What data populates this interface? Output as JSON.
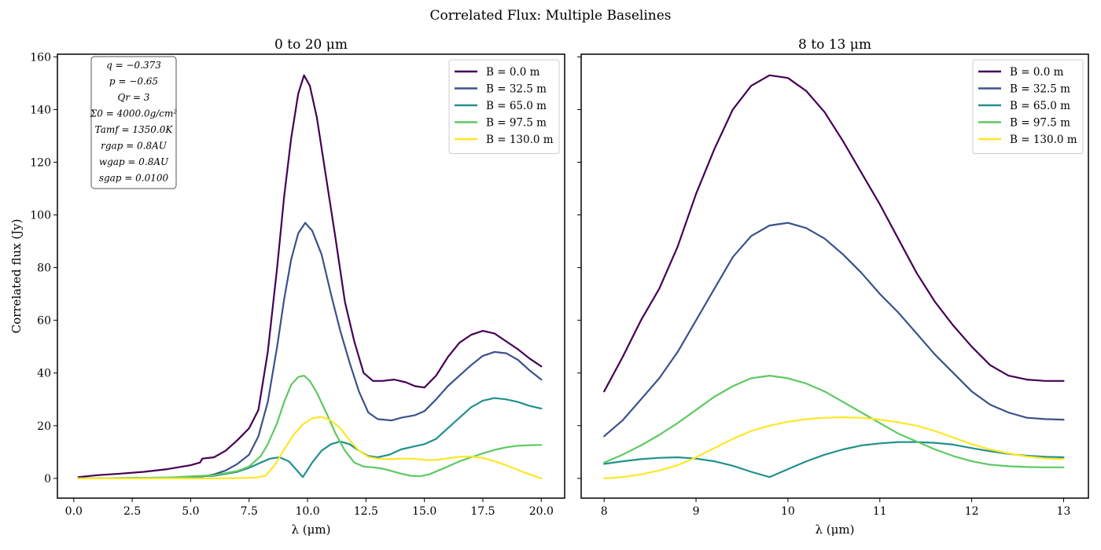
{
  "figure": {
    "suptitle": "Correlated Flux: Multiple Baselines"
  },
  "colors": {
    "B0": "#440154",
    "B32": "#3b528b",
    "B65": "#21918c",
    "B97": "#5ec962",
    "B130": "#fde725"
  },
  "parameters_box": [
    "q = −0.373",
    "p = −0.65",
    "Qr = 3",
    "Σ0 = 4000.0g/cm²",
    "Tamf = 1350.0K",
    "rgap = 0.8AU",
    "wgap = 0.8AU",
    "sgap = 0.0100"
  ],
  "chart_data": [
    {
      "type": "line",
      "title": "0 to 20 μm",
      "xlabel": "λ (μm)",
      "ylabel": "Correlated flux (Jy)",
      "xlim": [
        -0.7,
        21.0
      ],
      "ylim": [
        -7.5,
        161
      ],
      "xticks": [
        0.0,
        2.5,
        5.0,
        7.5,
        10.0,
        12.5,
        15.0,
        17.5,
        20.0
      ],
      "xtick_labels": [
        "0.0",
        "2.5",
        "5.0",
        "7.5",
        "10.0",
        "12.5",
        "15.0",
        "17.5",
        "20.0"
      ],
      "yticks": [
        0,
        20,
        40,
        60,
        80,
        100,
        120,
        140,
        160
      ],
      "ytick_labels": [
        "0",
        "20",
        "40",
        "60",
        "80",
        "100",
        "120",
        "140",
        "160"
      ],
      "legend_position": "top-right",
      "series": [
        {
          "name": "B = 0.0 m",
          "color_key": "B0",
          "x": [
            0.2,
            1,
            2,
            3,
            4,
            5,
            5.4,
            5.5,
            6,
            6.5,
            7,
            7.5,
            7.9,
            8.3,
            8.7,
            9.0,
            9.3,
            9.6,
            9.85,
            10.1,
            10.4,
            10.8,
            11.2,
            11.6,
            12.0,
            12.4,
            12.8,
            13.2,
            13.7,
            14.2,
            14.6,
            15.0,
            15.5,
            16.0,
            16.5,
            17.0,
            17.5,
            18.0,
            18.5,
            19.0,
            19.5,
            20.0
          ],
          "values": [
            0.5,
            1.2,
            1.8,
            2.5,
            3.5,
            5.0,
            6.0,
            7.5,
            8.0,
            10.5,
            14.5,
            19.0,
            26.0,
            48.0,
            80.0,
            107.0,
            129.0,
            146.0,
            153.0,
            149.0,
            137.0,
            114.0,
            91.0,
            67.0,
            52.0,
            40.0,
            37.0,
            37.0,
            37.5,
            36.5,
            35.0,
            34.5,
            39.0,
            46.0,
            51.5,
            54.5,
            56.0,
            55.0,
            52.0,
            49.0,
            45.5,
            42.5
          ]
        },
        {
          "name": "B = 32.5 m",
          "color_key": "B32",
          "x": [
            0.2,
            2,
            4,
            5.5,
            6,
            6.5,
            7,
            7.5,
            7.9,
            8.3,
            8.7,
            9.0,
            9.3,
            9.6,
            9.9,
            10.2,
            10.6,
            11.0,
            11.4,
            11.8,
            12.2,
            12.6,
            13.0,
            13.6,
            14.0,
            14.6,
            15.0,
            15.5,
            16.0,
            16.5,
            17.0,
            17.5,
            18.0,
            18.5,
            19.0,
            19.5,
            20.0
          ],
          "values": [
            0.0,
            0.1,
            0.3,
            0.7,
            1.5,
            3.0,
            5.5,
            9.0,
            16.0,
            29.0,
            50.0,
            68.0,
            83.0,
            93.0,
            97.0,
            94.0,
            85.0,
            70.0,
            56.0,
            44.0,
            33.0,
            25.0,
            22.5,
            22.0,
            23.0,
            24.0,
            25.5,
            30.0,
            35.0,
            39.0,
            43.0,
            46.5,
            48.0,
            47.5,
            45.0,
            41.0,
            37.5
          ]
        },
        {
          "name": "B = 65.0 m",
          "color_key": "B65",
          "x": [
            0.2,
            2,
            4,
            6,
            7,
            7.5,
            8,
            8.4,
            8.8,
            9.2,
            9.5,
            9.8,
            10.2,
            10.6,
            11.0,
            11.4,
            11.8,
            12.2,
            12.6,
            13.0,
            13.5,
            14.0,
            14.5,
            15.0,
            15.5,
            16.0,
            16.5,
            17.0,
            17.5,
            18.0,
            18.5,
            19.0,
            19.5,
            20.0
          ],
          "values": [
            0.0,
            0.1,
            0.2,
            1.0,
            2.5,
            4.0,
            6.0,
            7.5,
            8.0,
            6.5,
            3.5,
            0.5,
            6.0,
            10.5,
            13.0,
            14.0,
            13.0,
            10.5,
            8.5,
            8.0,
            9.0,
            11.0,
            12.0,
            13.0,
            15.0,
            19.0,
            23.0,
            27.0,
            29.5,
            30.5,
            30.0,
            29.0,
            27.5,
            26.5
          ]
        },
        {
          "name": "B = 97.5 m",
          "color_key": "B97",
          "x": [
            0.2,
            2,
            4,
            6,
            7,
            7.5,
            8,
            8.3,
            8.7,
            9.0,
            9.3,
            9.6,
            9.85,
            10.1,
            10.4,
            10.8,
            11.2,
            11.6,
            12.0,
            12.4,
            12.8,
            13.2,
            13.6,
            14.0,
            14.4,
            14.8,
            15.2,
            15.6,
            16.0,
            16.5,
            17.0,
            17.5,
            18.0,
            18.5,
            19.0,
            19.5,
            20.0
          ],
          "values": [
            0.0,
            0.1,
            0.3,
            1.2,
            2.8,
            4.5,
            8.5,
            13.0,
            21.0,
            29.0,
            35.5,
            38.5,
            39.0,
            37.0,
            32.5,
            25.0,
            17.0,
            10.5,
            6.0,
            4.5,
            4.2,
            3.7,
            2.8,
            1.8,
            1.0,
            0.8,
            1.5,
            3.0,
            4.5,
            6.5,
            8.0,
            9.5,
            10.8,
            11.8,
            12.4,
            12.6,
            12.7
          ]
        },
        {
          "name": "B = 130.0 m",
          "color_key": "B130",
          "x": [
            0.2,
            2,
            4,
            6,
            7,
            7.8,
            8.2,
            8.6,
            9.0,
            9.4,
            9.8,
            10.2,
            10.6,
            11.0,
            11.4,
            11.8,
            12.2,
            12.6,
            13.0,
            13.5,
            14.0,
            14.5,
            15.0,
            15.5,
            16.0,
            16.5,
            17.0,
            17.5,
            18.0,
            18.5,
            19.0,
            19.5,
            20.0
          ],
          "values": [
            0.0,
            0.0,
            0.0,
            0.0,
            0.1,
            0.3,
            1.0,
            5.0,
            11.0,
            16.5,
            20.5,
            22.8,
            23.3,
            22.0,
            19.0,
            14.5,
            10.5,
            8.2,
            7.5,
            7.3,
            7.5,
            7.5,
            7.0,
            7.0,
            7.6,
            8.2,
            8.3,
            7.8,
            6.5,
            5.0,
            3.2,
            1.5,
            0.0
          ]
        }
      ]
    },
    {
      "type": "line",
      "title": "8 to 13 μm",
      "xlabel": "λ (μm)",
      "ylabel": "",
      "xlim": [
        7.75,
        13.27
      ],
      "ylim": [
        -7.5,
        161
      ],
      "xticks": [
        8,
        9,
        10,
        11,
        12,
        13
      ],
      "xtick_labels": [
        "8",
        "9",
        "10",
        "11",
        "12",
        "13"
      ],
      "yticks": [
        0,
        20,
        40,
        60,
        80,
        100,
        120,
        140,
        160
      ],
      "ytick_labels": [],
      "legend_position": "top-right",
      "series": [
        {
          "name": "B = 0.0 m",
          "color_key": "B0",
          "x": [
            8.0,
            8.2,
            8.4,
            8.6,
            8.8,
            9.0,
            9.2,
            9.4,
            9.6,
            9.8,
            10.0,
            10.2,
            10.4,
            10.6,
            10.8,
            11.0,
            11.2,
            11.4,
            11.6,
            11.8,
            12.0,
            12.2,
            12.4,
            12.6,
            12.8,
            13.0
          ],
          "values": [
            33.0,
            46.0,
            60.0,
            72.0,
            88.0,
            108.0,
            125.0,
            140.0,
            149.0,
            153.0,
            152.0,
            147.0,
            139.0,
            128.0,
            116.0,
            104.0,
            91.0,
            78.0,
            67.0,
            58.0,
            50.0,
            43.0,
            39.0,
            37.5,
            37.0,
            37.0
          ]
        },
        {
          "name": "B = 32.5 m",
          "color_key": "B32",
          "x": [
            8.0,
            8.2,
            8.4,
            8.6,
            8.8,
            9.0,
            9.2,
            9.4,
            9.6,
            9.8,
            10.0,
            10.2,
            10.4,
            10.6,
            10.8,
            11.0,
            11.2,
            11.4,
            11.6,
            11.8,
            12.0,
            12.2,
            12.4,
            12.6,
            12.8,
            13.0
          ],
          "values": [
            16.0,
            22.0,
            30.0,
            38.0,
            48.0,
            60.0,
            72.0,
            84.0,
            92.0,
            96.0,
            97.0,
            95.0,
            91.0,
            85.0,
            78.0,
            70.0,
            63.0,
            55.0,
            47.0,
            40.0,
            33.0,
            28.0,
            25.0,
            23.0,
            22.5,
            22.3
          ]
        },
        {
          "name": "B = 65.0 m",
          "color_key": "B65",
          "x": [
            8.0,
            8.2,
            8.4,
            8.6,
            8.8,
            9.0,
            9.2,
            9.4,
            9.6,
            9.8,
            10.0,
            10.2,
            10.4,
            10.6,
            10.8,
            11.0,
            11.2,
            11.4,
            11.6,
            11.8,
            12.0,
            12.2,
            12.4,
            12.6,
            12.8,
            13.0
          ],
          "values": [
            5.5,
            6.5,
            7.3,
            7.8,
            8.0,
            7.5,
            6.5,
            4.8,
            2.5,
            0.5,
            3.5,
            6.5,
            9.0,
            11.0,
            12.5,
            13.3,
            13.8,
            13.8,
            13.5,
            12.8,
            11.5,
            10.3,
            9.3,
            8.6,
            8.2,
            8.0
          ]
        },
        {
          "name": "B = 97.5 m",
          "color_key": "B97",
          "x": [
            8.0,
            8.2,
            8.4,
            8.6,
            8.8,
            9.0,
            9.2,
            9.4,
            9.6,
            9.8,
            10.0,
            10.2,
            10.4,
            10.6,
            10.8,
            11.0,
            11.2,
            11.4,
            11.6,
            11.8,
            12.0,
            12.2,
            12.4,
            12.6,
            12.8,
            13.0
          ],
          "values": [
            6.0,
            9.0,
            12.5,
            16.5,
            21.0,
            26.0,
            31.0,
            35.0,
            38.0,
            39.0,
            38.0,
            36.0,
            33.0,
            29.0,
            25.0,
            21.0,
            17.0,
            14.0,
            11.0,
            8.5,
            6.5,
            5.2,
            4.6,
            4.3,
            4.2,
            4.2
          ]
        },
        {
          "name": "B = 130.0 m",
          "color_key": "B130",
          "x": [
            8.0,
            8.2,
            8.4,
            8.6,
            8.8,
            9.0,
            9.2,
            9.4,
            9.6,
            9.8,
            10.0,
            10.2,
            10.4,
            10.6,
            10.8,
            11.0,
            11.2,
            11.4,
            11.6,
            11.8,
            12.0,
            12.2,
            12.4,
            12.6,
            12.8,
            13.0
          ],
          "values": [
            0.0,
            0.5,
            1.5,
            3.0,
            5.0,
            8.0,
            11.5,
            15.0,
            18.0,
            20.0,
            21.5,
            22.5,
            23.0,
            23.2,
            23.0,
            22.3,
            21.3,
            20.0,
            18.0,
            15.5,
            13.0,
            11.0,
            9.5,
            8.3,
            7.6,
            7.3
          ]
        }
      ]
    }
  ]
}
